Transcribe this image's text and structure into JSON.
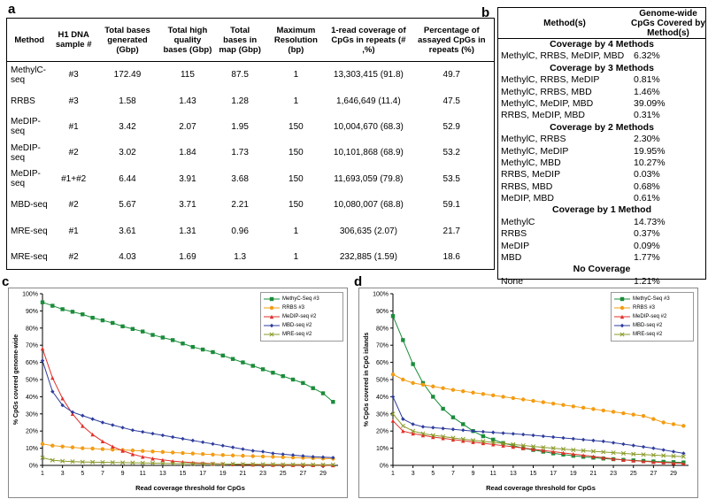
{
  "panel_labels": {
    "a": "a",
    "b": "b",
    "c": "c",
    "d": "d"
  },
  "table_a": {
    "headers": [
      "Method",
      "H1 DNA sample #",
      "Total bases generated (Gbp)",
      "Total high quality bases (Gbp)",
      "Total bases in map (Gbp)",
      "Maximum Resolution (bp)",
      "1-read coverage of CpGs in repeats (# ,%)",
      "Percentage of assayed CpGs in repeats (%)"
    ],
    "rows": [
      [
        "MethylC-seq",
        "#3",
        "172.49",
        "115",
        "87.5",
        "1",
        "13,303,415 (91.8)",
        "49.7"
      ],
      [
        "RRBS",
        "#3",
        "1.58",
        "1.43",
        "1.28",
        "1",
        "1,646,649 (11.4)",
        "47.5"
      ],
      [
        "MeDIP-seq",
        "#1",
        "3.42",
        "2.07",
        "1.95",
        "150",
        "10,004,670 (68.3)",
        "52.9"
      ],
      [
        "MeDIP-seq",
        "#2",
        "3.02",
        "1.84",
        "1.73",
        "150",
        "10,101,868 (68.9)",
        "53.2"
      ],
      [
        "MeDIP-seq",
        "#1+#2",
        "6.44",
        "3.91",
        "3.68",
        "150",
        "11,693,059 (79.8)",
        "53.5"
      ],
      [
        "MBD-seq",
        "#2",
        "5.67",
        "3.71",
        "2.21",
        "150",
        "10,080,007 (68.8)",
        "59.1"
      ],
      [
        "MRE-seq",
        "#1",
        "3.61",
        "1.31",
        "0.96",
        "1",
        "306,635 (2.07)",
        "21.7"
      ],
      [
        "MRE-seq",
        "#2",
        "4.03",
        "1.69",
        "1.3",
        "1",
        "232,885 (1.59)",
        "18.6"
      ]
    ]
  },
  "table_b": {
    "header_method": "Method(s)",
    "header_coverage": "Genome-wide CpGs Covered by Method(s)",
    "rows": [
      {
        "type": "section",
        "label": "Coverage by 4 Methods"
      },
      {
        "type": "row",
        "method": "MethylC, RRBS, MeDIP, MBD",
        "value": "6.32%"
      },
      {
        "type": "section",
        "label": "Coverage by 3 Methods"
      },
      {
        "type": "row",
        "method": "MethylC, RRBS, MeDIP",
        "value": "0.81%"
      },
      {
        "type": "row",
        "method": "MethylC, RRBS, MBD",
        "value": "1.46%"
      },
      {
        "type": "row",
        "method": "MethylC, MeDIP, MBD",
        "value": "39.09%"
      },
      {
        "type": "row",
        "method": "RRBS, MeDIP, MBD",
        "value": "0.31%"
      },
      {
        "type": "section",
        "label": "Coverage by 2 Methods"
      },
      {
        "type": "row",
        "method": "MethylC, RRBS",
        "value": "2.30%"
      },
      {
        "type": "row",
        "method": "MethylC, MeDIP",
        "value": "19.95%"
      },
      {
        "type": "row",
        "method": "MethylC, MBD",
        "value": "10.27%"
      },
      {
        "type": "row",
        "method": "RRBS, MeDIP",
        "value": "0.03%"
      },
      {
        "type": "row",
        "method": "RRBS, MBD",
        "value": "0.68%"
      },
      {
        "type": "row",
        "method": "MeDIP, MBD",
        "value": "0.61%"
      },
      {
        "type": "section",
        "label": "Coverage by 1 Method"
      },
      {
        "type": "row",
        "method": "MethylC",
        "value": "14.73%"
      },
      {
        "type": "row",
        "method": "RRBS",
        "value": "0.37%"
      },
      {
        "type": "row",
        "method": "MeDIP",
        "value": "0.09%"
      },
      {
        "type": "row",
        "method": "MBD",
        "value": "1.77%"
      },
      {
        "type": "section",
        "label": "No Coverage"
      },
      {
        "type": "row",
        "method": "None",
        "value": "1.21%"
      }
    ]
  },
  "chart_data": [
    {
      "type": "line",
      "id": "c",
      "xlabel": "Read coverage threshold for CpGs",
      "ylabel": "% CpGs covered genome-wide",
      "x": [
        1,
        2,
        3,
        4,
        5,
        6,
        7,
        8,
        9,
        10,
        11,
        12,
        13,
        14,
        15,
        16,
        17,
        18,
        19,
        20,
        21,
        22,
        23,
        24,
        25,
        26,
        27,
        28,
        29,
        30
      ],
      "xticks": [
        1,
        3,
        5,
        7,
        9,
        11,
        13,
        15,
        17,
        19,
        21,
        23,
        25,
        27,
        29
      ],
      "yticks": [
        "0%",
        "10%",
        "20%",
        "30%",
        "40%",
        "50%",
        "60%",
        "70%",
        "80%",
        "90%",
        "100%"
      ],
      "ylim": [
        0,
        100
      ],
      "series": [
        {
          "name": "MethyC-Seq #3",
          "color": "#1a8c3a",
          "marker": "square",
          "values": [
            95,
            93,
            91,
            89.5,
            88,
            86,
            84.5,
            83,
            81,
            79.5,
            78,
            76,
            74.5,
            73,
            71,
            69,
            67.5,
            66,
            64,
            62,
            60,
            58,
            56,
            54,
            52,
            50,
            48,
            45,
            42,
            37
          ]
        },
        {
          "name": "RRBS #3",
          "color": "#f39c12",
          "marker": "circle",
          "values": [
            12.5,
            11.5,
            11,
            10.5,
            10,
            9.8,
            9.5,
            9.2,
            9,
            8.7,
            8.4,
            8.1,
            7.8,
            7.5,
            7.2,
            6.9,
            6.6,
            6.3,
            6,
            5.8,
            5.6,
            5.4,
            5.2,
            5,
            4.8,
            4.6,
            4.4,
            4.2,
            4,
            3.9
          ]
        },
        {
          "name": "MeDIP-seq #2",
          "color": "#e0302b",
          "marker": "triangle",
          "values": [
            68,
            51,
            39,
            30,
            23,
            18,
            14,
            11,
            8.5,
            6.5,
            5,
            4,
            3.2,
            2.5,
            2,
            1.6,
            1.3,
            1,
            0.8,
            0.6,
            0.5,
            0.4,
            0.3,
            0.25,
            0.2,
            0.15,
            0.1,
            0.1,
            0.08,
            0.05
          ]
        },
        {
          "name": "MBD-seq #2",
          "color": "#2e3d9c",
          "marker": "diamond",
          "values": [
            61,
            43,
            35,
            31,
            29,
            27,
            25,
            23.5,
            22,
            20.5,
            19.5,
            18.5,
            17.5,
            16.5,
            15.5,
            14.5,
            13.5,
            12.5,
            11.5,
            10.5,
            9.5,
            8.5,
            8,
            7,
            6.5,
            6,
            5.5,
            5,
            4.8,
            4.5
          ]
        },
        {
          "name": "MRE-seq #2",
          "color": "#8a9a2a",
          "marker": "x",
          "values": [
            4.5,
            3,
            2.5,
            2.2,
            2,
            1.9,
            1.8,
            1.7,
            1.6,
            1.5,
            1.4,
            1.3,
            1.2,
            1.1,
            1,
            1,
            0.9,
            0.9,
            0.8,
            0.8,
            0.7,
            0.7,
            0.6,
            0.6,
            0.5,
            0.5,
            0.5,
            0.4,
            0.4,
            0.4
          ]
        }
      ]
    },
    {
      "type": "line",
      "id": "d",
      "xlabel": "Read coverage threshold for CpGs",
      "ylabel": "% CpGs covered in CpG islands",
      "x": [
        1,
        2,
        3,
        4,
        5,
        6,
        7,
        8,
        9,
        10,
        11,
        12,
        13,
        14,
        15,
        16,
        17,
        18,
        19,
        20,
        21,
        22,
        23,
        24,
        25,
        26,
        27,
        28,
        29,
        30
      ],
      "xticks": [
        1,
        3,
        5,
        7,
        9,
        11,
        13,
        15,
        17,
        19,
        21,
        23,
        25,
        27,
        29
      ],
      "yticks": [
        "0%",
        "10%",
        "20%",
        "30%",
        "40%",
        "50%",
        "60%",
        "70%",
        "80%",
        "90%",
        "100%"
      ],
      "ylim": [
        0,
        100
      ],
      "series": [
        {
          "name": "MethyC-Seq #3",
          "color": "#1a8c3a",
          "marker": "square",
          "values": [
            87,
            73,
            59,
            48,
            40,
            33,
            28,
            24,
            20,
            17,
            15,
            13,
            11.5,
            10,
            9,
            8,
            7,
            6.3,
            5.6,
            5,
            4.5,
            4,
            3.6,
            3.2,
            2.9,
            2.6,
            2.3,
            2.1,
            1.9,
            1.7
          ]
        },
        {
          "name": "RRBS #3",
          "color": "#f39c12",
          "marker": "circle",
          "values": [
            53,
            50,
            48,
            47,
            46,
            45,
            44,
            43.2,
            42.4,
            41.6,
            40.8,
            40,
            39.2,
            38.4,
            37.6,
            36.8,
            36,
            35.2,
            34.4,
            33.6,
            32.8,
            32,
            31.2,
            30.4,
            29.6,
            28.8,
            27,
            25,
            24,
            23
          ]
        },
        {
          "name": "MeDIP-seq #2",
          "color": "#e0302b",
          "marker": "triangle",
          "values": [
            26,
            20,
            18.5,
            17.5,
            16.5,
            15.8,
            15,
            14.3,
            13.6,
            12.9,
            12.2,
            11.5,
            10.8,
            10.1,
            9.4,
            8.7,
            8,
            7.3,
            6.6,
            5.9,
            5.2,
            4.5,
            3.8,
            3.2,
            2.8,
            2.4,
            2,
            1.7,
            1.4,
            1.2
          ]
        },
        {
          "name": "MBD-seq #2",
          "color": "#2e3d9c",
          "marker": "diamond",
          "values": [
            40,
            27,
            24,
            22.5,
            22,
            21.5,
            21,
            20.5,
            20,
            19.6,
            19.2,
            18.8,
            18.4,
            18,
            17.5,
            17,
            16.5,
            16,
            15.5,
            15,
            14.5,
            14,
            13.2,
            12.4,
            11.6,
            10.8,
            10,
            9,
            8,
            7
          ]
        },
        {
          "name": "MRE-seq #2",
          "color": "#8a9a2a",
          "marker": "x",
          "values": [
            30,
            23,
            20,
            18.5,
            17.5,
            16.8,
            16,
            15.3,
            14.6,
            14,
            13.4,
            12.8,
            12.2,
            11.6,
            11,
            10.5,
            10,
            9.5,
            9,
            8.6,
            8.2,
            7.8,
            7.4,
            7,
            6.6,
            6.3,
            6,
            5.7,
            5.4,
            5.1
          ]
        }
      ]
    }
  ]
}
